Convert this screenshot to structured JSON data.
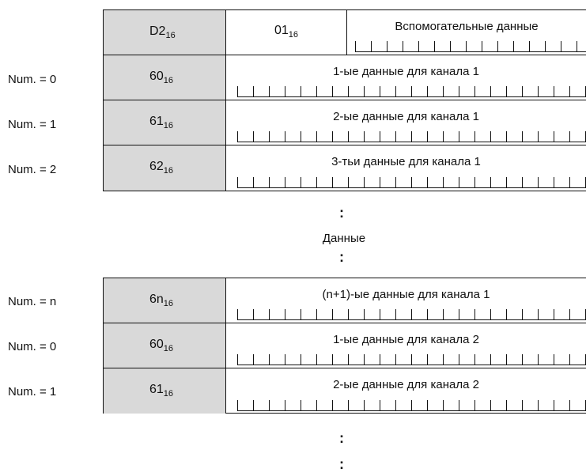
{
  "table1": {
    "header": {
      "code": "D2",
      "code_sub": "16",
      "second": "01",
      "second_sub": "16",
      "aux": "Вспомогательные данные"
    },
    "rows": [
      {
        "num": "Num. = 0",
        "code": "60",
        "sub": "16",
        "label": "1-ые данные для канала 1"
      },
      {
        "num": "Num. = 1",
        "code": "61",
        "sub": "16",
        "label": "2-ые данные для канала 1"
      },
      {
        "num": "Num. = 2",
        "code": "62",
        "sub": "16",
        "label": "3-тьи данные для канала 1"
      }
    ]
  },
  "separator": {
    "dots": ":",
    "label": "Данные"
  },
  "table2": {
    "rows": [
      {
        "num": "Num. = n",
        "code": "6n",
        "sub": "16",
        "label": "(n+1)-ые данные для канала 1"
      },
      {
        "num": "Num. = 0",
        "code": "60",
        "sub": "16",
        "label": "1-ые данные для канала 2"
      },
      {
        "num": "Num. = 1",
        "code": "61",
        "sub": "16",
        "label": "2-ые данные для канала 2"
      }
    ]
  }
}
